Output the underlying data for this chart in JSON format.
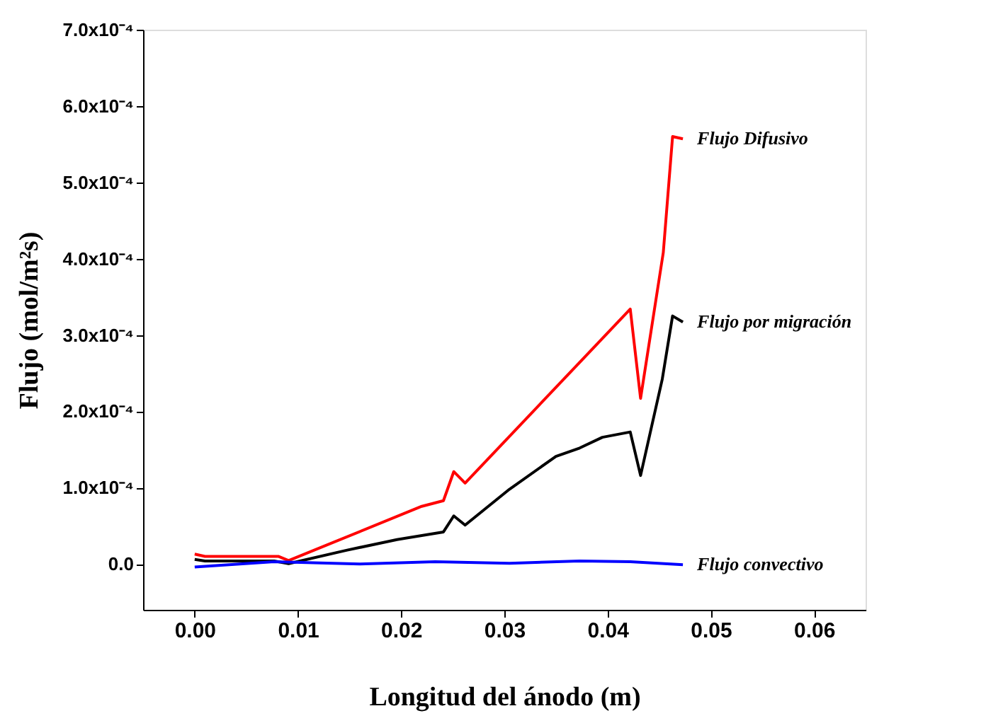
{
  "chart_data": {
    "type": "line",
    "xlabel": "Longitud del ánodo (m)",
    "ylabel": "Flujo (mol/m²s)",
    "xlim": [
      -0.005,
      0.065
    ],
    "ylim": [
      -6e-05,
      0.0007
    ],
    "xticks": [
      {
        "value": 0,
        "label": "0.00"
      },
      {
        "value": 0.01,
        "label": "0.01"
      },
      {
        "value": 0.02,
        "label": "0.02"
      },
      {
        "value": 0.03,
        "label": "0.03"
      },
      {
        "value": 0.04,
        "label": "0.04"
      },
      {
        "value": 0.05,
        "label": "0.05"
      },
      {
        "value": 0.06,
        "label": "0.06"
      }
    ],
    "yticks": [
      {
        "value": 0,
        "label": "0.0"
      },
      {
        "value": 0.0001,
        "label": "1.0x10⁻⁴"
      },
      {
        "value": 0.0002,
        "label": "2.0x10⁻⁴"
      },
      {
        "value": 0.0003,
        "label": "3.0x10⁻⁴"
      },
      {
        "value": 0.0004,
        "label": "4.0x10⁻⁴"
      },
      {
        "value": 0.0005,
        "label": "5.0x10⁻⁴"
      },
      {
        "value": 0.0006,
        "label": "6.0x10⁻⁴"
      },
      {
        "value": 0.0007,
        "label": "7.0x10⁻⁴"
      }
    ],
    "grid": false,
    "legend": false,
    "marker": "none",
    "line_style": "solid",
    "series": [
      {
        "name": "Flujo Difusivo",
        "color": "#ff0000",
        "x": [
          0,
          0.001,
          0.0081,
          0.0091,
          0.022,
          0.0241,
          0.0251,
          0.0262,
          0.0422,
          0.0432,
          0.0454,
          0.0463,
          0.0473
        ],
        "values": [
          1.3e-05,
          1e-05,
          1e-05,
          4.5e-06,
          7.56e-05,
          8.3e-05,
          0.000121,
          0.000106,
          0.000334,
          0.000217,
          0.000408,
          0.00056,
          0.000557
        ]
      },
      {
        "name": "Flujo por migración",
        "color": "#000000",
        "x": [
          0,
          0.001,
          0.0077,
          0.0091,
          0.0147,
          0.0196,
          0.0241,
          0.0251,
          0.0262,
          0.0305,
          0.035,
          0.0373,
          0.0395,
          0.0422,
          0.0432,
          0.0453,
          0.0463,
          0.0473
        ],
        "values": [
          6e-06,
          4e-06,
          4e-06,
          5e-07,
          1.8e-05,
          3.2e-05,
          4.2e-05,
          6.3e-05,
          5.1e-05,
          9.8e-05,
          0.000141,
          0.000152,
          0.000166,
          0.000173,
          0.000116,
          0.000242,
          0.000325,
          0.000317
        ]
      },
      {
        "name": "Flujo convectivo",
        "color": "#0000ff",
        "x": [
          0,
          0.0077,
          0.016,
          0.0233,
          0.0305,
          0.0373,
          0.0422,
          0.0473
        ],
        "values": [
          -4e-06,
          3e-06,
          0.0,
          3e-06,
          1e-06,
          4e-06,
          3e-06,
          -1e-06
        ]
      }
    ]
  }
}
